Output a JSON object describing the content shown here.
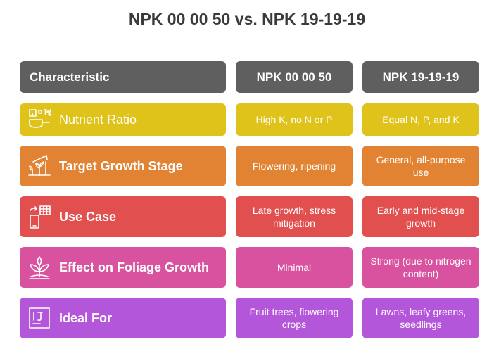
{
  "title": "NPK 00 00 50 vs. NPK 19-19-19",
  "headers": [
    "Characteristic",
    "NPK 00 00 50",
    "NPK 19-19-19"
  ],
  "rows": [
    {
      "label": "Nutrient Ratio",
      "icon": "nutrient-ratio-icon",
      "color": "#dfc21a",
      "a": "High K, no N or P",
      "b": "Equal N, P, and K"
    },
    {
      "label": "Target Growth Stage",
      "icon": "growth-stage-icon",
      "color": "#e18333",
      "a": "Flowering, ripening",
      "b": "General, all-purpose use"
    },
    {
      "label": "Use Case",
      "icon": "use-case-icon",
      "color": "#e24f4f",
      "a": "Late growth, stress mitigation",
      "b": "Early and mid-stage growth"
    },
    {
      "label": "Effect on Foliage Growth",
      "icon": "foliage-icon",
      "color": "#d9529f",
      "a": "Minimal",
      "b": "Strong (due to nitrogen content)"
    },
    {
      "label": "Ideal For",
      "icon": "ideal-for-icon",
      "color": "#b356d9",
      "a": "Fruit trees, flowering crops",
      "b": "Lawns, leafy greens, seedlings"
    }
  ]
}
